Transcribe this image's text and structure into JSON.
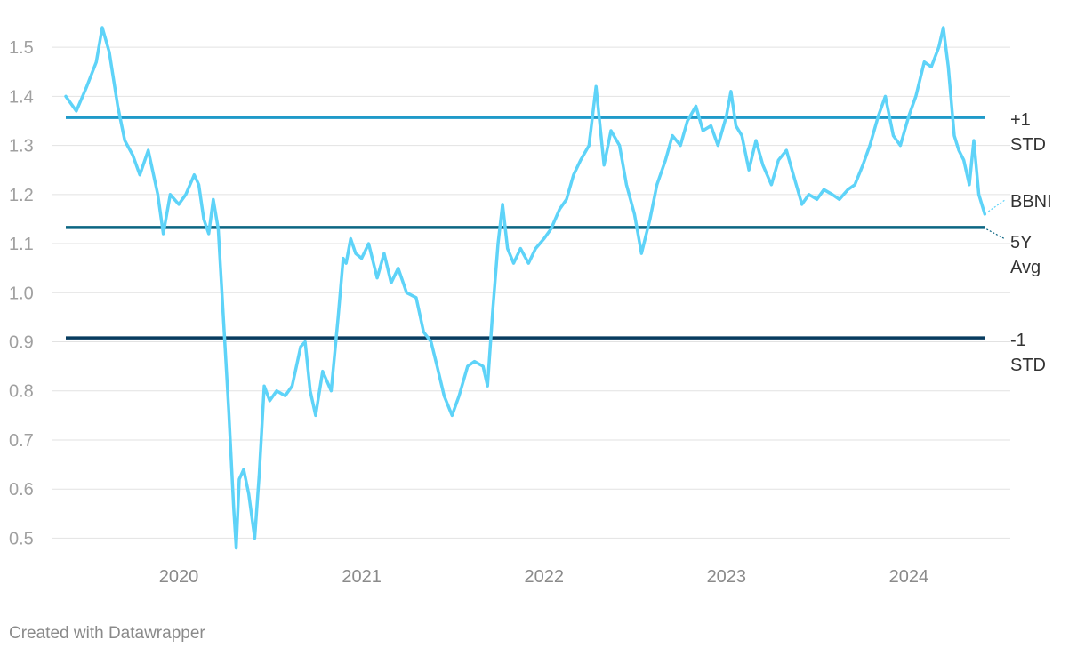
{
  "credit": "Created with Datawrapper",
  "chart_data": {
    "type": "line",
    "xlabel": "",
    "ylabel": "",
    "x_range": [
      "2019-05-20",
      "2024-06-20"
    ],
    "ylim": [
      0.47,
      1.56
    ],
    "y_ticks": [
      0.5,
      0.6,
      0.7,
      0.8,
      0.9,
      1.0,
      1.1,
      1.2,
      1.3,
      1.4,
      1.5
    ],
    "y_tick_labels": [
      "0.5",
      "0.6",
      "0.7",
      "0.8",
      "0.9",
      "1.0",
      "1.1",
      "1.2",
      "1.3",
      "1.4",
      "1.5"
    ],
    "x_ticks": [
      "2020-01-01",
      "2021-01-01",
      "2022-01-01",
      "2023-01-01",
      "2024-01-01"
    ],
    "x_tick_labels": [
      "2020",
      "2021",
      "2022",
      "2023",
      "2024"
    ],
    "grid": true,
    "reference_lines": [
      {
        "label": "+1 STD",
        "value": 1.357,
        "color": "#1f9ac9"
      },
      {
        "label": "5Y Avg",
        "value": 1.133,
        "color": "#0c6683"
      },
      {
        "label": "-1 STD",
        "value": 0.908,
        "color": "#083c5f"
      }
    ],
    "series": [
      {
        "name": "BBNI",
        "color": "#5ed3f8",
        "points": [
          [
            "2019-05-20",
            1.4
          ],
          [
            "2019-06-10",
            1.37
          ],
          [
            "2019-07-01",
            1.42
          ],
          [
            "2019-07-20",
            1.47
          ],
          [
            "2019-08-01",
            1.54
          ],
          [
            "2019-08-15",
            1.49
          ],
          [
            "2019-09-01",
            1.38
          ],
          [
            "2019-09-15",
            1.31
          ],
          [
            "2019-10-01",
            1.28
          ],
          [
            "2019-10-15",
            1.24
          ],
          [
            "2019-11-01",
            1.29
          ],
          [
            "2019-11-20",
            1.2
          ],
          [
            "2019-12-01",
            1.12
          ],
          [
            "2019-12-15",
            1.2
          ],
          [
            "2020-01-01",
            1.18
          ],
          [
            "2020-01-15",
            1.2
          ],
          [
            "2020-02-01",
            1.24
          ],
          [
            "2020-02-10",
            1.22
          ],
          [
            "2020-02-20",
            1.15
          ],
          [
            "2020-03-01",
            1.12
          ],
          [
            "2020-03-10",
            1.19
          ],
          [
            "2020-03-20",
            1.13
          ],
          [
            "2020-04-01",
            0.92
          ],
          [
            "2020-04-10",
            0.76
          ],
          [
            "2020-04-20",
            0.56
          ],
          [
            "2020-04-25",
            0.48
          ],
          [
            "2020-05-01",
            0.62
          ],
          [
            "2020-05-10",
            0.64
          ],
          [
            "2020-05-20",
            0.59
          ],
          [
            "2020-06-01",
            0.5
          ],
          [
            "2020-06-10",
            0.63
          ],
          [
            "2020-06-20",
            0.81
          ],
          [
            "2020-07-01",
            0.78
          ],
          [
            "2020-07-15",
            0.8
          ],
          [
            "2020-08-01",
            0.79
          ],
          [
            "2020-08-15",
            0.81
          ],
          [
            "2020-09-01",
            0.89
          ],
          [
            "2020-09-10",
            0.9
          ],
          [
            "2020-09-20",
            0.8
          ],
          [
            "2020-10-01",
            0.75
          ],
          [
            "2020-10-15",
            0.84
          ],
          [
            "2020-11-01",
            0.8
          ],
          [
            "2020-11-15",
            0.95
          ],
          [
            "2020-11-25",
            1.07
          ],
          [
            "2020-12-01",
            1.06
          ],
          [
            "2020-12-10",
            1.11
          ],
          [
            "2020-12-20",
            1.08
          ],
          [
            "2021-01-01",
            1.07
          ],
          [
            "2021-01-15",
            1.1
          ],
          [
            "2021-02-01",
            1.03
          ],
          [
            "2021-02-15",
            1.08
          ],
          [
            "2021-03-01",
            1.02
          ],
          [
            "2021-03-15",
            1.05
          ],
          [
            "2021-04-01",
            1.0
          ],
          [
            "2021-04-20",
            0.99
          ],
          [
            "2021-05-05",
            0.92
          ],
          [
            "2021-05-20",
            0.9
          ],
          [
            "2021-06-01",
            0.85
          ],
          [
            "2021-06-15",
            0.79
          ],
          [
            "2021-07-01",
            0.75
          ],
          [
            "2021-07-15",
            0.79
          ],
          [
            "2021-08-01",
            0.85
          ],
          [
            "2021-08-15",
            0.86
          ],
          [
            "2021-09-01",
            0.85
          ],
          [
            "2021-09-10",
            0.81
          ],
          [
            "2021-09-20",
            0.96
          ],
          [
            "2021-10-01",
            1.1
          ],
          [
            "2021-10-10",
            1.18
          ],
          [
            "2021-10-20",
            1.09
          ],
          [
            "2021-11-01",
            1.06
          ],
          [
            "2021-11-15",
            1.09
          ],
          [
            "2021-12-01",
            1.06
          ],
          [
            "2021-12-15",
            1.09
          ],
          [
            "2022-01-01",
            1.11
          ],
          [
            "2022-01-15",
            1.13
          ],
          [
            "2022-02-01",
            1.17
          ],
          [
            "2022-02-15",
            1.19
          ],
          [
            "2022-03-01",
            1.24
          ],
          [
            "2022-03-15",
            1.27
          ],
          [
            "2022-04-01",
            1.3
          ],
          [
            "2022-04-15",
            1.42
          ],
          [
            "2022-05-01",
            1.26
          ],
          [
            "2022-05-15",
            1.33
          ],
          [
            "2022-06-01",
            1.3
          ],
          [
            "2022-06-15",
            1.22
          ],
          [
            "2022-07-01",
            1.16
          ],
          [
            "2022-07-15",
            1.08
          ],
          [
            "2022-08-01",
            1.15
          ],
          [
            "2022-08-15",
            1.22
          ],
          [
            "2022-09-01",
            1.27
          ],
          [
            "2022-09-15",
            1.32
          ],
          [
            "2022-10-01",
            1.3
          ],
          [
            "2022-10-15",
            1.35
          ],
          [
            "2022-11-01",
            1.38
          ],
          [
            "2022-11-15",
            1.33
          ],
          [
            "2022-12-01",
            1.34
          ],
          [
            "2022-12-15",
            1.3
          ],
          [
            "2023-01-01",
            1.36
          ],
          [
            "2023-01-10",
            1.41
          ],
          [
            "2023-01-20",
            1.34
          ],
          [
            "2023-02-01",
            1.32
          ],
          [
            "2023-02-15",
            1.25
          ],
          [
            "2023-03-01",
            1.31
          ],
          [
            "2023-03-15",
            1.26
          ],
          [
            "2023-04-01",
            1.22
          ],
          [
            "2023-04-15",
            1.27
          ],
          [
            "2023-05-01",
            1.29
          ],
          [
            "2023-05-15",
            1.24
          ],
          [
            "2023-06-01",
            1.18
          ],
          [
            "2023-06-15",
            1.2
          ],
          [
            "2023-07-01",
            1.19
          ],
          [
            "2023-07-15",
            1.21
          ],
          [
            "2023-08-01",
            1.2
          ],
          [
            "2023-08-15",
            1.19
          ],
          [
            "2023-09-01",
            1.21
          ],
          [
            "2023-09-15",
            1.22
          ],
          [
            "2023-10-01",
            1.26
          ],
          [
            "2023-10-15",
            1.3
          ],
          [
            "2023-11-01",
            1.36
          ],
          [
            "2023-11-15",
            1.4
          ],
          [
            "2023-12-01",
            1.32
          ],
          [
            "2023-12-15",
            1.3
          ],
          [
            "2024-01-01",
            1.36
          ],
          [
            "2024-01-15",
            1.4
          ],
          [
            "2024-02-01",
            1.47
          ],
          [
            "2024-02-15",
            1.46
          ],
          [
            "2024-03-01",
            1.5
          ],
          [
            "2024-03-10",
            1.54
          ],
          [
            "2024-03-20",
            1.46
          ],
          [
            "2024-04-01",
            1.32
          ],
          [
            "2024-04-10",
            1.29
          ],
          [
            "2024-04-20",
            1.27
          ],
          [
            "2024-05-01",
            1.22
          ],
          [
            "2024-05-10",
            1.31
          ],
          [
            "2024-05-20",
            1.2
          ],
          [
            "2024-06-01",
            1.16
          ]
        ]
      }
    ]
  }
}
